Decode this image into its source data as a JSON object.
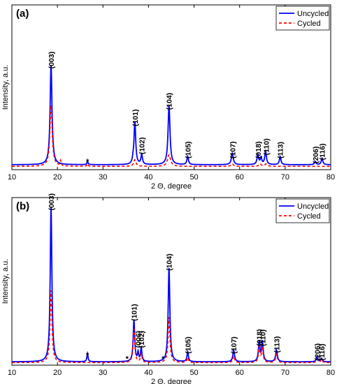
{
  "chart_data": [
    {
      "type": "line",
      "panel_label": "(a)",
      "xlabel": "2 Θ, degree",
      "ylabel": "Intensity, a.u.",
      "xlim": [
        10,
        80
      ],
      "ylim": [
        0,
        1
      ],
      "xticks": [
        10,
        20,
        30,
        40,
        50,
        60,
        70,
        80
      ],
      "legend": {
        "position": "top-right",
        "entries": [
          "Uncycled",
          "Cycled"
        ]
      },
      "annotations": [
        {
          "text": "(003)",
          "x": 18.6,
          "y": 0.63
        },
        {
          "text": "(101)",
          "x": 37.0,
          "y": 0.28
        },
        {
          "text": "(102)",
          "x": 38.5,
          "y": 0.11
        },
        {
          "text": "(104)",
          "x": 44.5,
          "y": 0.38
        },
        {
          "text": "(105)",
          "x": 48.6,
          "y": 0.085
        },
        {
          "text": "(107)",
          "x": 58.4,
          "y": 0.085
        },
        {
          "text": "(018)",
          "x": 64.0,
          "y": 0.085
        },
        {
          "text": "(110)",
          "x": 65.8,
          "y": 0.105
        },
        {
          "text": "(113)",
          "x": 68.9,
          "y": 0.085
        },
        {
          "text": "(206)",
          "x": 76.6,
          "y": 0.055
        },
        {
          "text": "(116)",
          "x": 78.1,
          "y": 0.075
        },
        {
          "text": "*",
          "x": 26.6,
          "y": 0.05
        }
      ],
      "series": [
        {
          "name": "Uncycled",
          "color": "#0000ff",
          "style": "solid",
          "baseline": 0.03,
          "peaks": [
            [
              18.6,
              0.6,
              0.25
            ],
            [
              26.6,
              0.02,
              0.15
            ],
            [
              36.6,
              0.02,
              0.15
            ],
            [
              37.0,
              0.26,
              0.22
            ],
            [
              38.5,
              0.06,
              0.2
            ],
            [
              44.5,
              0.36,
              0.25
            ],
            [
              48.6,
              0.05,
              0.2
            ],
            [
              58.4,
              0.07,
              0.25
            ],
            [
              64.0,
              0.06,
              0.22
            ],
            [
              64.7,
              0.04,
              0.2
            ],
            [
              65.7,
              0.08,
              0.22
            ],
            [
              68.9,
              0.05,
              0.2
            ],
            [
              76.6,
              0.02,
              0.2
            ],
            [
              78.1,
              0.04,
              0.2
            ]
          ]
        },
        {
          "name": "Cycled",
          "color": "#ff0000",
          "style": "dashed",
          "baseline": 0.02,
          "peaks": [
            [
              18.6,
              0.37,
              0.3
            ],
            [
              20.7,
              0.03,
              0.12
            ],
            [
              26.6,
              0.015,
              0.15
            ],
            [
              37.0,
              0.04,
              0.3
            ],
            [
              44.5,
              0.07,
              0.4
            ],
            [
              58.4,
              0.015,
              0.3
            ],
            [
              64.5,
              0.015,
              0.3
            ],
            [
              65.8,
              0.015,
              0.3
            ]
          ]
        }
      ]
    },
    {
      "type": "line",
      "panel_label": "(b)",
      "xlabel": "2 Θ, degree",
      "ylabel": "Intensity, a.u.",
      "xlim": [
        10,
        80
      ],
      "ylim": [
        0,
        1
      ],
      "xticks": [
        10,
        20,
        30,
        40,
        50,
        60,
        70,
        80
      ],
      "legend": {
        "position": "top-right",
        "entries": [
          "Uncycled",
          "Cycled"
        ]
      },
      "annotations": [
        {
          "text": "(003)",
          "x": 18.6,
          "y": 0.94
        },
        {
          "text": "(101)",
          "x": 36.8,
          "y": 0.28
        },
        {
          "text": "(006)",
          "x": 37.7,
          "y": 0.12
        },
        {
          "text": "(102)",
          "x": 38.4,
          "y": 0.12
        },
        {
          "text": "(104)",
          "x": 44.5,
          "y": 0.58
        },
        {
          "text": "(105)",
          "x": 48.6,
          "y": 0.085
        },
        {
          "text": "(107)",
          "x": 58.7,
          "y": 0.085
        },
        {
          "text": "(018)",
          "x": 64.3,
          "y": 0.13
        },
        {
          "text": "(110)",
          "x": 65.0,
          "y": 0.13
        },
        {
          "text": "(113)",
          "x": 68.1,
          "y": 0.09
        },
        {
          "text": "(206)",
          "x": 77.0,
          "y": 0.045
        },
        {
          "text": "(116)",
          "x": 78.0,
          "y": 0.045
        },
        {
          "text": "*",
          "x": 26.6,
          "y": 0.06
        },
        {
          "text": "*",
          "x": 35.3,
          "y": 0.04
        },
        {
          "text": "*",
          "x": 43.2,
          "y": 0.04
        }
      ],
      "series": [
        {
          "name": "Uncycled",
          "color": "#0000ff",
          "style": "solid",
          "baseline": 0.02,
          "peaks": [
            [
              18.6,
              0.92,
              0.22
            ],
            [
              26.6,
              0.05,
              0.15
            ],
            [
              36.8,
              0.25,
              0.2
            ],
            [
              37.7,
              0.05,
              0.15
            ],
            [
              38.4,
              0.08,
              0.18
            ],
            [
              44.5,
              0.56,
              0.22
            ],
            [
              48.6,
              0.06,
              0.18
            ],
            [
              58.7,
              0.07,
              0.22
            ],
            [
              64.3,
              0.12,
              0.2
            ],
            [
              65.0,
              0.12,
              0.2
            ],
            [
              68.1,
              0.07,
              0.22
            ],
            [
              77.0,
              0.03,
              0.2
            ],
            [
              78.0,
              0.02,
              0.2
            ]
          ]
        },
        {
          "name": "Cycled",
          "color": "#ff0000",
          "style": "dashed",
          "baseline": 0.015,
          "peaks": [
            [
              18.6,
              0.43,
              0.25
            ],
            [
              36.8,
              0.2,
              0.22
            ],
            [
              38.4,
              0.05,
              0.2
            ],
            [
              44.5,
              0.27,
              0.24
            ],
            [
              48.6,
              0.03,
              0.2
            ],
            [
              58.7,
              0.04,
              0.22
            ],
            [
              64.3,
              0.09,
              0.2
            ],
            [
              65.0,
              0.09,
              0.2
            ],
            [
              68.1,
              0.05,
              0.22
            ],
            [
              77.0,
              0.02,
              0.2
            ],
            [
              78.0,
              0.02,
              0.2
            ]
          ]
        }
      ]
    }
  ]
}
